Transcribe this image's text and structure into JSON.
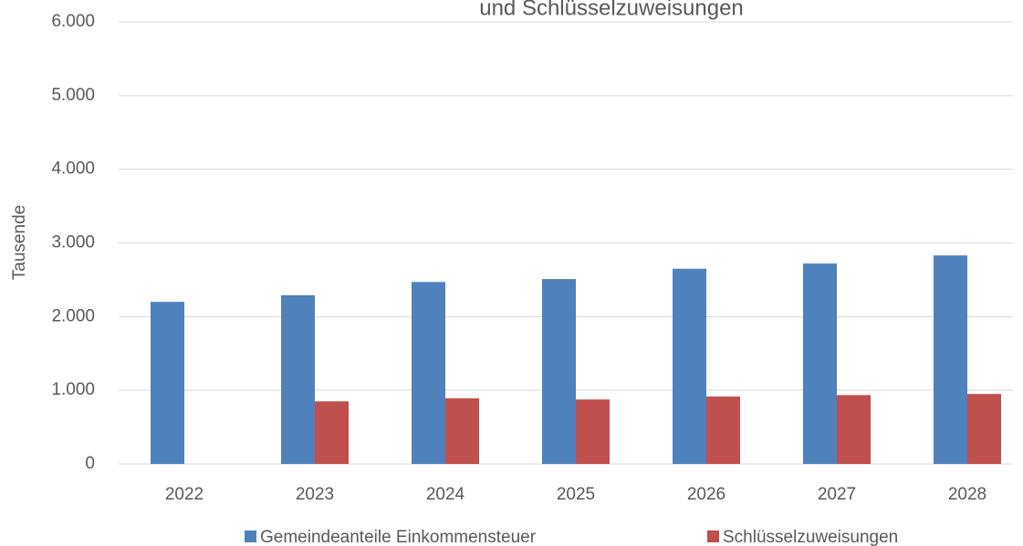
{
  "chart_data": {
    "type": "bar",
    "title": "und Schlüsselzuweisungen",
    "y_label": "Tausende",
    "categories": [
      "2022",
      "2023",
      "2024",
      "2025",
      "2026",
      "2027",
      "2028"
    ],
    "series": [
      {
        "name": "Gemeindeanteile Einkommensteuer",
        "color": "#4f81bd",
        "values": [
          2200,
          2290,
          2470,
          2510,
          2650,
          2720,
          2830
        ]
      },
      {
        "name": "Schlüsselzuweisungen",
        "color": "#c0504d",
        "values": [
          null,
          850,
          890,
          875,
          915,
          935,
          950
        ]
      }
    ],
    "ylim": [
      0,
      6000
    ],
    "yticks": [
      0,
      {
        "value": 1000,
        "label": "1.000"
      },
      {
        "value": 2000,
        "label": "2.000"
      },
      {
        "value": 3000,
        "label": "3.000"
      },
      {
        "value": 4000,
        "label": "4.000"
      },
      {
        "value": 5000,
        "label": "5.000"
      },
      {
        "value": 6000,
        "label": "6.000"
      }
    ],
    "grid": true,
    "legend": "bottom"
  }
}
